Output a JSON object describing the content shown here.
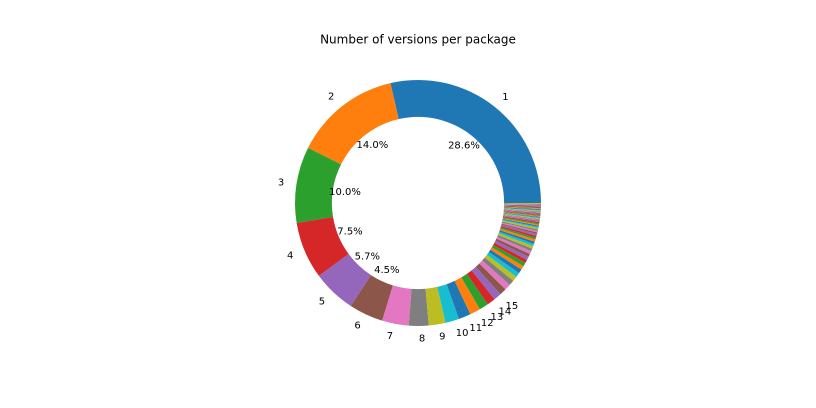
{
  "chart_data": {
    "type": "pie",
    "title": "Number of versions per package",
    "categories": [
      "1",
      "2",
      "3",
      "4",
      "5",
      "6",
      "7",
      "8",
      "9",
      "10",
      "11",
      "12",
      "13",
      "14",
      "15",
      null,
      null,
      null,
      null,
      null,
      null,
      null,
      null,
      null,
      null,
      null,
      null,
      null,
      null,
      null,
      null,
      null,
      null,
      null,
      null,
      null,
      null,
      null,
      null,
      null,
      null,
      null,
      null,
      null,
      null,
      null,
      null,
      null,
      null,
      null,
      null,
      null,
      null,
      null,
      null,
      null,
      null,
      null,
      null,
      null,
      null,
      null,
      null,
      null,
      null,
      null,
      null,
      null,
      null
    ],
    "values": [
      28.6,
      14.0,
      10.0,
      7.5,
      5.7,
      4.5,
      3.5,
      2.6,
      2.2,
      1.8,
      1.6,
      1.4,
      1.2,
      1.1,
      1.0,
      0.9,
      0.8,
      0.7,
      0.65,
      0.6,
      0.55,
      0.5,
      0.5,
      0.45,
      0.45,
      0.4,
      0.4,
      0.35,
      0.35,
      0.3,
      0.3,
      0.3,
      0.25,
      0.25,
      0.25,
      0.2,
      0.2,
      0.2,
      0.2,
      0.15,
      0.15,
      0.15,
      0.15,
      0.15,
      0.1,
      0.1,
      0.1,
      0.1,
      0.1,
      0.1,
      0.1,
      0.1,
      0.1,
      0.1,
      0.1,
      0.1,
      0.1,
      0.1,
      0.1,
      0.1,
      0.1,
      0.1,
      0.1,
      0.1,
      0.1,
      0.1,
      0.1,
      0.1,
      0.1
    ],
    "value_labels": [
      "28.6%",
      "14.0%",
      "10.0%",
      "7.5%",
      "5.7%",
      "4.5%",
      null,
      null,
      null,
      null,
      null,
      null,
      null,
      null,
      null,
      null,
      null,
      null,
      null,
      null,
      null,
      null,
      null,
      null,
      null,
      null,
      null,
      null,
      null,
      null,
      null,
      null,
      null,
      null,
      null,
      null,
      null,
      null,
      null,
      null,
      null,
      null,
      null,
      null,
      null,
      null,
      null,
      null,
      null,
      null,
      null,
      null,
      null,
      null,
      null,
      null,
      null,
      null,
      null,
      null,
      null,
      null,
      null,
      null,
      null,
      null,
      null,
      null,
      null
    ],
    "colors": [
      "#1f77b4",
      "#ff7f0e",
      "#2ca02c",
      "#d62728",
      "#9467bd",
      "#8c564b",
      "#e377c2",
      "#7f7f7f",
      "#bcbd22",
      "#17becf"
    ],
    "start_angle": 0,
    "hole": 0.7
  }
}
